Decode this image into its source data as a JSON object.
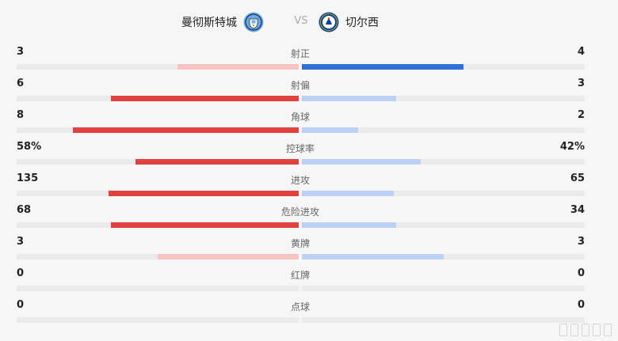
{
  "header": {
    "home_team": "曼彻斯特城",
    "away_team": "切尔西",
    "vs": "VS",
    "home_badge_icon": "manchester-city-badge",
    "away_badge_icon": "chelsea-badge"
  },
  "colors": {
    "home_strong": "#e04040",
    "home_weak": "#f7c3c3",
    "away_strong": "#2f6fd6",
    "away_weak": "#bdd0f5",
    "track": "#ebebeb"
  },
  "stats": [
    {
      "label": "射正",
      "home": "3",
      "away": "4",
      "home_share": 0.4286,
      "away_share": 0.5714,
      "leader": "away"
    },
    {
      "label": "射偏",
      "home": "6",
      "away": "3",
      "home_share": 0.6667,
      "away_share": 0.3333,
      "leader": "home"
    },
    {
      "label": "角球",
      "home": "8",
      "away": "2",
      "home_share": 0.8,
      "away_share": 0.2,
      "leader": "home"
    },
    {
      "label": "控球率",
      "home": "58%",
      "away": "42%",
      "home_share": 0.58,
      "away_share": 0.42,
      "leader": "home"
    },
    {
      "label": "进攻",
      "home": "135",
      "away": "65",
      "home_share": 0.675,
      "away_share": 0.325,
      "leader": "home"
    },
    {
      "label": "危险进攻",
      "home": "68",
      "away": "34",
      "home_share": 0.6667,
      "away_share": 0.3333,
      "leader": "home"
    },
    {
      "label": "黄牌",
      "home": "3",
      "away": "3",
      "home_share": 0.5,
      "away_share": 0.5,
      "leader": "tie"
    },
    {
      "label": "红牌",
      "home": "0",
      "away": "0",
      "home_share": 0,
      "away_share": 0,
      "leader": "none"
    },
    {
      "label": "点球",
      "home": "0",
      "away": "0",
      "home_share": 0,
      "away_share": 0,
      "leader": "none"
    }
  ]
}
